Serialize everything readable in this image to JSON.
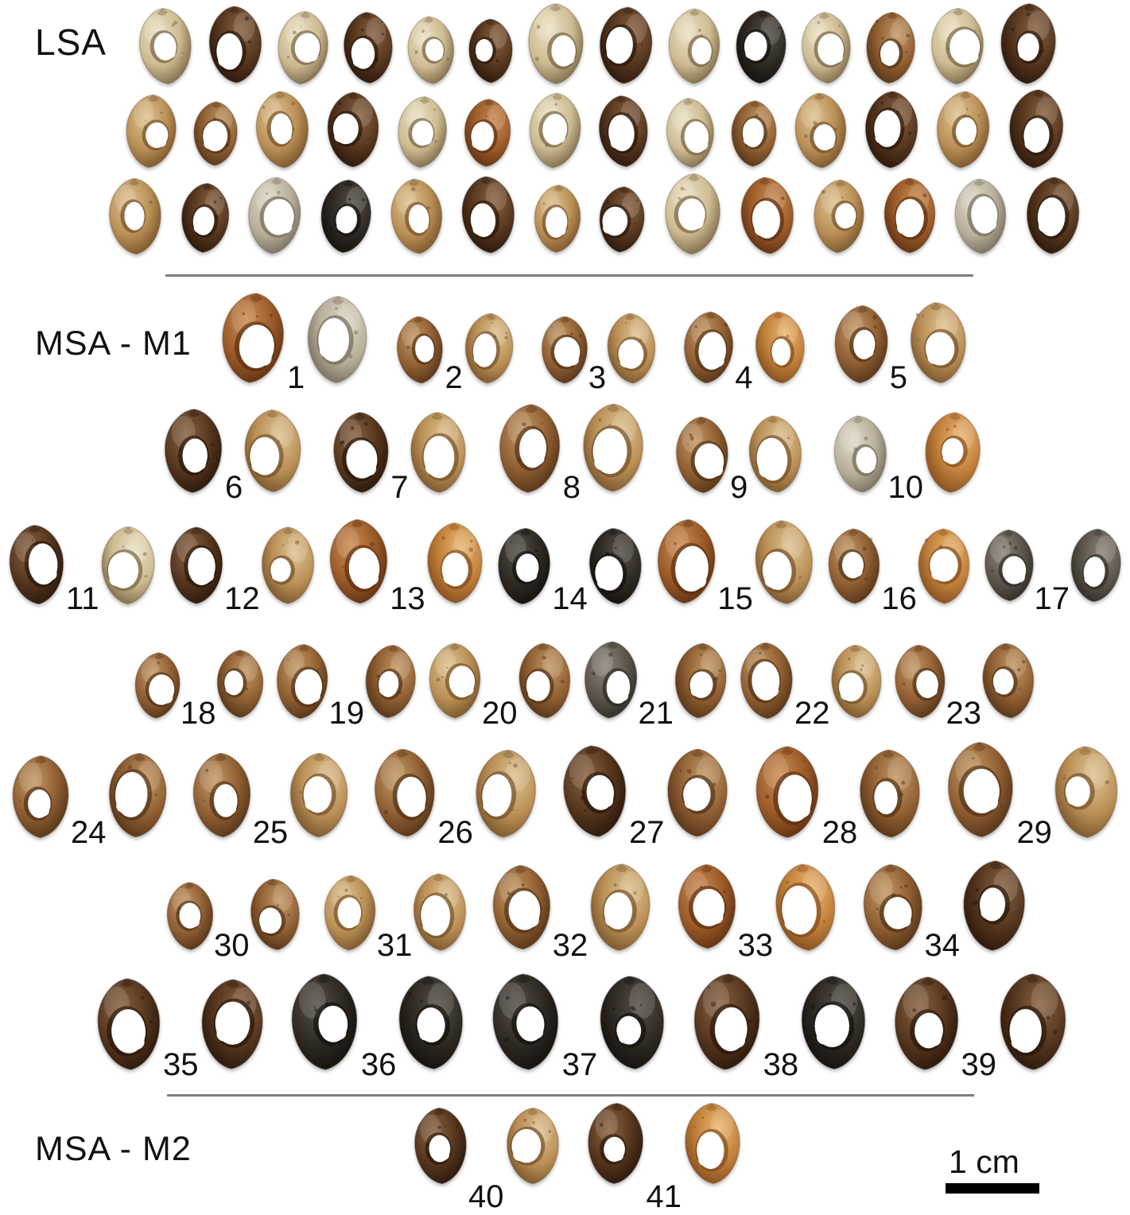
{
  "figure": {
    "scale_bar": {
      "label": "1 cm"
    },
    "sections": [
      {
        "id": "lsa",
        "label": "LSA",
        "rows": [
          {
            "shells": [
              [
                "cream",
                86,
                100
              ],
              [
                "darkbrown",
                84,
                104
              ],
              [
                "cream",
                80,
                96
              ],
              [
                "darkbrown",
                78,
                96
              ],
              [
                "cream",
                74,
                90
              ],
              [
                "darkbrown",
                70,
                88
              ],
              [
                "cream",
                88,
                106
              ],
              [
                "darkbrown",
                84,
                102
              ],
              [
                "cream",
                82,
                100
              ],
              [
                "black",
                80,
                98
              ],
              [
                "cream",
                78,
                96
              ],
              [
                "brown",
                78,
                96
              ],
              [
                "cream",
                84,
                100
              ],
              [
                "darkbrown",
                88,
                106
              ]
            ]
          },
          {
            "shells": [
              [
                "tan",
                80,
                98
              ],
              [
                "brown",
                70,
                92
              ],
              [
                "tan",
                84,
                102
              ],
              [
                "darkbrown",
                82,
                102
              ],
              [
                "cream",
                78,
                96
              ],
              [
                "rust",
                74,
                94
              ],
              [
                "cream",
                82,
                100
              ],
              [
                "darkbrown",
                78,
                98
              ],
              [
                "cream",
                76,
                94
              ],
              [
                "brown",
                72,
                92
              ],
              [
                "tan",
                82,
                100
              ],
              [
                "darkbrown",
                84,
                102
              ],
              [
                "tan",
                84,
                102
              ],
              [
                "darkbrown",
                86,
                104
              ]
            ]
          },
          {
            "shells": [
              [
                "tan",
                84,
                100
              ],
              [
                "darkbrown",
                76,
                96
              ],
              [
                "creamgray",
                84,
                102
              ],
              [
                "black",
                80,
                100
              ],
              [
                "tan",
                82,
                100
              ],
              [
                "darkbrown",
                84,
                104
              ],
              [
                "tan",
                74,
                94
              ],
              [
                "darkbrown",
                72,
                92
              ],
              [
                "cream",
                90,
                106
              ],
              [
                "rust",
                84,
                102
              ],
              [
                "tan",
                80,
                100
              ],
              [
                "rust",
                82,
                102
              ],
              [
                "creamgray",
                82,
                100
              ],
              [
                "darkbrown",
                84,
                102
              ]
            ]
          }
        ]
      },
      {
        "id": "msa-m1",
        "label": "MSA - M1",
        "rows": [
          {
            "pairs": [
              {
                "num": "1",
                "shells": [
                  [
                    "rust",
                    100,
                    118
                  ],
                  [
                    "creamgray",
                    96,
                    114
                  ]
                ]
              },
              {
                "num": "2",
                "shells": [
                  [
                    "brown",
                    76,
                    88
                  ],
                  [
                    "tan",
                    80,
                    92
                  ]
                ]
              },
              {
                "num": "3",
                "shells": [
                  [
                    "brown",
                    74,
                    88
                  ],
                  [
                    "tan",
                    78,
                    92
                  ]
                ]
              },
              {
                "num": "4",
                "shells": [
                  [
                    "brown",
                    80,
                    94
                  ],
                  [
                    "orange",
                    82,
                    94
                  ]
                ]
              },
              {
                "num": "5",
                "shells": [
                  [
                    "brown",
                    86,
                    102
                  ],
                  [
                    "tan",
                    92,
                    106
                  ]
                ]
              }
            ]
          },
          {
            "pairs": [
              {
                "num": "6",
                "shells": [
                  [
                    "darkbrown",
                    94,
                    110
                  ],
                  [
                    "tan",
                    90,
                    110
                  ]
                ]
              },
              {
                "num": "7",
                "shells": [
                  [
                    "darkbrown",
                    88,
                    106
                  ],
                  [
                    "tan",
                    88,
                    106
                  ]
                ]
              },
              {
                "num": "8",
                "shells": [
                  [
                    "brown",
                    98,
                    116
                  ],
                  [
                    "tan",
                    96,
                    118
                  ]
                ]
              },
              {
                "num": "9",
                "shells": [
                  [
                    "brown",
                    84,
                    100
                  ],
                  [
                    "tan",
                    84,
                    102
                  ]
                ]
              },
              {
                "num": "10",
                "shells": [
                  [
                    "creamgray",
                    84,
                    102
                  ],
                  [
                    "orange",
                    88,
                    106
                  ]
                ]
              }
            ]
          },
          {
            "pairs": [
              {
                "num": "11",
                "shells": [
                  [
                    "darkbrown",
                    88,
                    104
                  ],
                  [
                    "cream",
                    86,
                    102
                  ]
                ]
              },
              {
                "num": "12",
                "shells": [
                  [
                    "darkbrown",
                    84,
                    102
                  ],
                  [
                    "tan",
                    84,
                    102
                  ]
                ]
              },
              {
                "num": "13",
                "shells": [
                  [
                    "rust",
                    92,
                    112
                  ],
                  [
                    "orange",
                    88,
                    108
                  ]
                ]
              },
              {
                "num": "14",
                "shells": [
                  [
                    "black",
                    84,
                    100
                  ],
                  [
                    "black",
                    84,
                    100
                  ]
                ]
              },
              {
                "num": "15",
                "shells": [
                  [
                    "rust",
                    92,
                    112
                  ],
                  [
                    "tan",
                    92,
                    110
                  ]
                ]
              },
              {
                "num": "16",
                "shells": [
                  [
                    "brown",
                    82,
                    100
                  ],
                  [
                    "orange",
                    82,
                    100
                  ]
                ]
              },
              {
                "num": "17",
                "shells": [
                  [
                    "gray",
                    78,
                    102
                  ],
                  [
                    "gray",
                    80,
                    102
                  ]
                ]
              }
            ]
          },
          {
            "pairs": [
              {
                "num": "18",
                "shells": [
                  [
                    "brown",
                    72,
                    88
                  ],
                  [
                    "brown",
                    74,
                    92
                  ]
                ]
              },
              {
                "num": "19",
                "shells": [
                  [
                    "brown",
                    82,
                    98
                  ],
                  [
                    "brown",
                    80,
                    98
                  ]
                ]
              },
              {
                "num": "20",
                "shells": [
                  [
                    "tan",
                    82,
                    100
                  ],
                  [
                    "brown",
                    82,
                    100
                  ]
                ]
              },
              {
                "num": "21",
                "shells": [
                  [
                    "gray",
                    84,
                    102
                  ],
                  [
                    "brown",
                    82,
                    100
                  ]
                ]
              },
              {
                "num": "22",
                "shells": [
                  [
                    "brown",
                    84,
                    100
                  ],
                  [
                    "tan",
                    80,
                    98
                  ]
                ]
              },
              {
                "num": "23",
                "shells": [
                  [
                    "brown",
                    80,
                    98
                  ],
                  [
                    "brown",
                    82,
                    100
                  ]
                ]
              }
            ]
          },
          {
            "pairs": [
              {
                "num": "24",
                "shells": [
                  [
                    "brown",
                    90,
                    108
                  ],
                  [
                    "brown",
                    92,
                    112
                  ]
                ]
              },
              {
                "num": "25",
                "shells": [
                  [
                    "brown",
                    92,
                    112
                  ],
                  [
                    "tan",
                    92,
                    112
                  ]
                ]
              },
              {
                "num": "26",
                "shells": [
                  [
                    "brown",
                    96,
                    118
                  ],
                  [
                    "tan",
                    96,
                    116
                  ]
                ]
              },
              {
                "num": "27",
                "shells": [
                  [
                    "darkbrown",
                    100,
                    122
                  ],
                  [
                    "brown",
                    96,
                    118
                  ]
                ]
              },
              {
                "num": "28",
                "shells": [
                  [
                    "rust",
                    102,
                    120
                  ],
                  [
                    "brown",
                    96,
                    116
                  ]
                ]
              },
              {
                "num": "29",
                "shells": [
                  [
                    "brown",
                    104,
                    126
                  ],
                  [
                    "tan",
                    100,
                    120
                  ]
                ]
              }
            ]
          },
          {
            "pairs": [
              {
                "num": "30",
                "shells": [
                  [
                    "brown",
                    74,
                    92
                  ],
                  [
                    "brown",
                    78,
                    96
                  ]
                ]
              },
              {
                "num": "31",
                "shells": [
                  [
                    "tan",
                    82,
                    100
                  ],
                  [
                    "tan",
                    84,
                    102
                  ]
                ]
              },
              {
                "num": "32",
                "shells": [
                  [
                    "brown",
                    92,
                    114
                  ],
                  [
                    "tan",
                    96,
                    114
                  ]
                ]
              },
              {
                "num": "33",
                "shells": [
                  [
                    "rust",
                    92,
                    116
                  ],
                  [
                    "orange",
                    96,
                    114
                  ]
                ]
              },
              {
                "num": "34",
                "shells": [
                  [
                    "brown",
                    94,
                    114
                  ],
                  [
                    "darkbrown",
                    100,
                    118
                  ]
                ]
              }
            ]
          },
          {
            "pairs": [
              {
                "num": "35",
                "shells": [
                  [
                    "darkbrown",
                    100,
                    120
                  ],
                  [
                    "darkbrown",
                    98,
                    120
                  ]
                ]
              },
              {
                "num": "36",
                "shells": [
                  [
                    "black",
                    106,
                    126
                  ],
                  [
                    "black",
                    102,
                    124
                  ]
                ]
              },
              {
                "num": "37",
                "shells": [
                  [
                    "black",
                    106,
                    126
                  ],
                  [
                    "black",
                    102,
                    124
                  ]
                ]
              },
              {
                "num": "38",
                "shells": [
                  [
                    "darkbrown",
                    106,
                    126
                  ],
                  [
                    "black",
                    102,
                    124
                  ]
                ]
              },
              {
                "num": "39",
                "shells": [
                  [
                    "darkbrown",
                    102,
                    122
                  ],
                  [
                    "darkbrown",
                    106,
                    126
                  ]
                ]
              }
            ]
          }
        ]
      },
      {
        "id": "msa-m2",
        "label": "MSA - M2",
        "rows": [
          {
            "pairs": [
              {
                "num": "40",
                "shells": [
                  [
                    "darkbrown",
                    84,
                    100
                  ],
                  [
                    "tan",
                    86,
                    100
                  ]
                ]
              },
              {
                "num": "41",
                "shells": [
                  [
                    "darkbrown",
                    92,
                    106
                  ],
                  [
                    "orange",
                    92,
                    106
                  ]
                ]
              }
            ]
          }
        ]
      }
    ]
  }
}
